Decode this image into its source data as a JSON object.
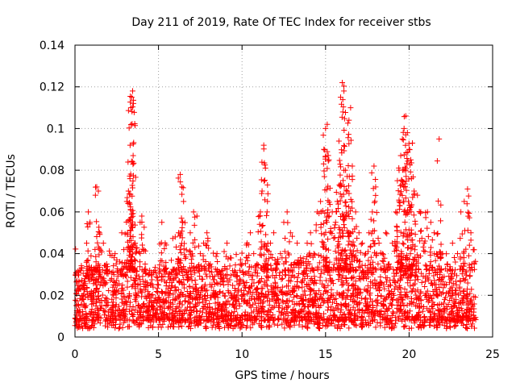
{
  "chart_data": {
    "type": "scatter",
    "title": "Day 211 of 2019, Rate Of TEC Index for receiver stbs",
    "xlabel": "GPS time / hours",
    "ylabel": "ROTI / TECUs",
    "xlim": [
      0,
      25
    ],
    "ylim": [
      0,
      0.14
    ],
    "x_ticks": [
      0,
      5,
      10,
      15,
      20,
      25
    ],
    "y_ticks": [
      0,
      0.02,
      0.04,
      0.06,
      0.08,
      0.1,
      0.12,
      0.14
    ],
    "x_tick_labels": [
      "0",
      "5",
      "10",
      "15",
      "20",
      "25"
    ],
    "y_tick_labels": [
      "0",
      "0.02",
      "0.04",
      "0.06",
      "0.08",
      "0.1",
      "0.12",
      "0.14"
    ],
    "grid": true,
    "marker": "+",
    "marker_color": "#ff0000",
    "series": [
      {
        "name": "ROTI",
        "points": [
          [
            0.1,
            0.015
          ],
          [
            0.2,
            0.022
          ],
          [
            0.3,
            0.012
          ],
          [
            0.4,
            0.033
          ],
          [
            0.5,
            0.018
          ],
          [
            0.6,
            0.028
          ],
          [
            0.7,
            0.045
          ],
          [
            0.8,
            0.06
          ],
          [
            0.9,
            0.055
          ],
          [
            1.0,
            0.02
          ],
          [
            1.1,
            0.03
          ],
          [
            1.2,
            0.042
          ],
          [
            1.3,
            0.072
          ],
          [
            1.4,
            0.07
          ],
          [
            1.5,
            0.025
          ],
          [
            1.6,
            0.015
          ],
          [
            1.7,
            0.045
          ],
          [
            1.9,
            0.035
          ],
          [
            2.0,
            0.012
          ],
          [
            2.2,
            0.028
          ],
          [
            2.4,
            0.04
          ],
          [
            2.6,
            0.022
          ],
          [
            2.8,
            0.05
          ],
          [
            3.0,
            0.03
          ],
          [
            3.1,
            0.065
          ],
          [
            3.2,
            0.07
          ],
          [
            3.3,
            0.092
          ],
          [
            3.35,
            0.11
          ],
          [
            3.4,
            0.115
          ],
          [
            3.45,
            0.118
          ],
          [
            3.5,
            0.112
          ],
          [
            3.6,
            0.045
          ],
          [
            3.7,
            0.02
          ],
          [
            3.9,
            0.055
          ],
          [
            4.0,
            0.058
          ],
          [
            4.2,
            0.035
          ],
          [
            4.4,
            0.015
          ],
          [
            4.6,
            0.03
          ],
          [
            4.8,
            0.01
          ],
          [
            5.0,
            0.025
          ],
          [
            5.2,
            0.055
          ],
          [
            5.4,
            0.045
          ],
          [
            5.6,
            0.02
          ],
          [
            5.8,
            0.03
          ],
          [
            6.0,
            0.048
          ],
          [
            6.2,
            0.05
          ],
          [
            6.3,
            0.078
          ],
          [
            6.4,
            0.072
          ],
          [
            6.5,
            0.065
          ],
          [
            6.7,
            0.03
          ],
          [
            6.9,
            0.05
          ],
          [
            7.1,
            0.06
          ],
          [
            7.3,
            0.058
          ],
          [
            7.5,
            0.04
          ],
          [
            7.7,
            0.045
          ],
          [
            7.9,
            0.05
          ],
          [
            8.1,
            0.035
          ],
          [
            8.3,
            0.02
          ],
          [
            8.5,
            0.04
          ],
          [
            8.7,
            0.03
          ],
          [
            8.9,
            0.025
          ],
          [
            9.1,
            0.045
          ],
          [
            9.3,
            0.038
          ],
          [
            9.5,
            0.03
          ],
          [
            9.7,
            0.02
          ],
          [
            9.9,
            0.035
          ],
          [
            10.1,
            0.03
          ],
          [
            10.3,
            0.045
          ],
          [
            10.5,
            0.05
          ],
          [
            10.7,
            0.04
          ],
          [
            10.9,
            0.035
          ],
          [
            11.1,
            0.06
          ],
          [
            11.2,
            0.07
          ],
          [
            11.3,
            0.092
          ],
          [
            11.4,
            0.081
          ],
          [
            11.5,
            0.06
          ],
          [
            11.7,
            0.045
          ],
          [
            11.9,
            0.05
          ],
          [
            12.1,
            0.035
          ],
          [
            12.3,
            0.04
          ],
          [
            12.5,
            0.055
          ],
          [
            12.7,
            0.06
          ],
          [
            12.9,
            0.05
          ],
          [
            13.1,
            0.035
          ],
          [
            13.3,
            0.045
          ],
          [
            13.5,
            0.038
          ],
          [
            13.7,
            0.03
          ],
          [
            13.9,
            0.045
          ],
          [
            14.1,
            0.05
          ],
          [
            14.3,
            0.04
          ],
          [
            14.5,
            0.06
          ],
          [
            14.7,
            0.065
          ],
          [
            14.9,
            0.09
          ],
          [
            15.0,
            0.1
          ],
          [
            15.1,
            0.102
          ],
          [
            15.2,
            0.085
          ],
          [
            15.4,
            0.06
          ],
          [
            15.6,
            0.055
          ],
          [
            15.7,
            0.065
          ],
          [
            15.8,
            0.094
          ],
          [
            15.9,
            0.115
          ],
          [
            16.0,
            0.122
          ],
          [
            16.1,
            0.118
          ],
          [
            16.2,
            0.08
          ],
          [
            16.3,
            0.07
          ],
          [
            16.4,
            0.104
          ],
          [
            16.5,
            0.11
          ],
          [
            16.6,
            0.082
          ],
          [
            16.8,
            0.06
          ],
          [
            17.0,
            0.05
          ],
          [
            17.2,
            0.045
          ],
          [
            17.4,
            0.04
          ],
          [
            17.6,
            0.05
          ],
          [
            17.8,
            0.06
          ],
          [
            17.9,
            0.082
          ],
          [
            18.0,
            0.072
          ],
          [
            18.2,
            0.045
          ],
          [
            18.4,
            0.04
          ],
          [
            18.6,
            0.05
          ],
          [
            18.8,
            0.035
          ],
          [
            19.0,
            0.045
          ],
          [
            19.2,
            0.06
          ],
          [
            19.3,
            0.075
          ],
          [
            19.4,
            0.08
          ],
          [
            19.5,
            0.087
          ],
          [
            19.6,
            0.095
          ],
          [
            19.7,
            0.1
          ],
          [
            19.8,
            0.106
          ],
          [
            19.9,
            0.098
          ],
          [
            20.0,
            0.09
          ],
          [
            20.1,
            0.085
          ],
          [
            20.2,
            0.093
          ],
          [
            20.3,
            0.07
          ],
          [
            20.5,
            0.068
          ],
          [
            20.7,
            0.06
          ],
          [
            20.9,
            0.045
          ],
          [
            21.1,
            0.06
          ],
          [
            21.3,
            0.055
          ],
          [
            21.5,
            0.05
          ],
          [
            21.8,
            0.095
          ],
          [
            22.0,
            0.04
          ],
          [
            22.3,
            0.035
          ],
          [
            22.6,
            0.045
          ],
          [
            22.9,
            0.04
          ],
          [
            23.1,
            0.06
          ],
          [
            23.3,
            0.065
          ],
          [
            23.5,
            0.071
          ],
          [
            23.7,
            0.05
          ],
          [
            23.9,
            0.035
          ]
        ],
        "band": {
          "x_range": [
            0,
            24
          ],
          "typical_low": 0.008,
          "typical_high": 0.032,
          "min": 0.004
        }
      }
    ]
  }
}
